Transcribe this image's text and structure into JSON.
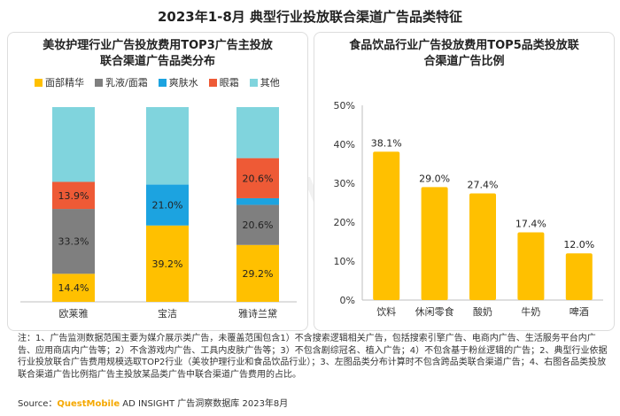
{
  "title": "2023年1-8月 典型行业投放联合渠道广告品类特征",
  "watermark": "QUESTMOBILE",
  "colors": {
    "yellow": "#FFC000",
    "gray": "#7F7F7F",
    "blue": "#1CA3E0",
    "red": "#EE5A36",
    "teal": "#80D4DD",
    "bar": "#FFC000"
  },
  "chart_data": [
    {
      "type": "bar",
      "stacked": true,
      "title_line1": "美妆护理行业广告投放费用TOP3广告主投放",
      "title_line2": "联合渠道广告品类分布",
      "categories": [
        "欧莱雅",
        "宝洁",
        "雅诗兰黛"
      ],
      "series": [
        {
          "name": "面部精华",
          "color": "#FFC000",
          "values": [
            14.4,
            39.2,
            29.2
          ],
          "labels": [
            "14.4%",
            "39.2%",
            "29.2%"
          ]
        },
        {
          "name": "乳液/面霜",
          "color": "#7F7F7F",
          "values": [
            33.3,
            0,
            20.6
          ],
          "labels": [
            "33.3%",
            "",
            "20.6%"
          ]
        },
        {
          "name": "爽肤水",
          "color": "#1CA3E0",
          "values": [
            0,
            21.0,
            3.4
          ],
          "labels": [
            "",
            "21.0%",
            ""
          ]
        },
        {
          "name": "眼霜",
          "color": "#EE5A36",
          "values": [
            13.9,
            0,
            20.6
          ],
          "labels": [
            "13.9%",
            "",
            "20.6%"
          ]
        },
        {
          "name": "其他",
          "color": "#80D4DD",
          "values": [
            38.4,
            39.8,
            26.2
          ],
          "labels": [
            "",
            "",
            ""
          ]
        }
      ],
      "ylim": [
        0,
        100
      ]
    },
    {
      "type": "bar",
      "title_line1": "食品饮品行业广告投放费用TOP5品类投放联",
      "title_line2": "合渠道广告比例",
      "categories": [
        "饮料",
        "休闲零食",
        "酸奶",
        "牛奶",
        "啤酒"
      ],
      "values": [
        38.1,
        29.0,
        27.4,
        17.4,
        12.0
      ],
      "labels": [
        "38.1%",
        "29.0%",
        "27.4%",
        "17.4%",
        "12.0%"
      ],
      "yticks": [
        "0%",
        "10%",
        "20%",
        "30%",
        "40%",
        "50%"
      ],
      "ylim": [
        0,
        50
      ]
    }
  ],
  "notes": "注：1、广告监测数据范围主要为媒介展示类广告，未覆盖范围包含1）不含搜索逻辑相关广告，包括搜索引擎广告、电商内广告、生活服务平台内广告、应用商店内广告等；2）不含游戏内广告、工具内皮肤广告等；3）不包含剧综冠名、植入广告；4）不包含基于粉丝逻辑的广告；2、典型行业依据行业投放联合广告费用规模选取TOP2行业（美妆护理行业和食品饮品行业）；3、左图品类分布计算时不包含跨品类联合渠道广告；4、右图各品类投放联合渠道广告比例指广告主投放某品类广告中联合渠道广告费用的占比。",
  "source": {
    "prefix": "Source：",
    "brand": "QuestMobile",
    "rest": " AD INSIGHT 广告洞察数据库 2023年8月"
  }
}
